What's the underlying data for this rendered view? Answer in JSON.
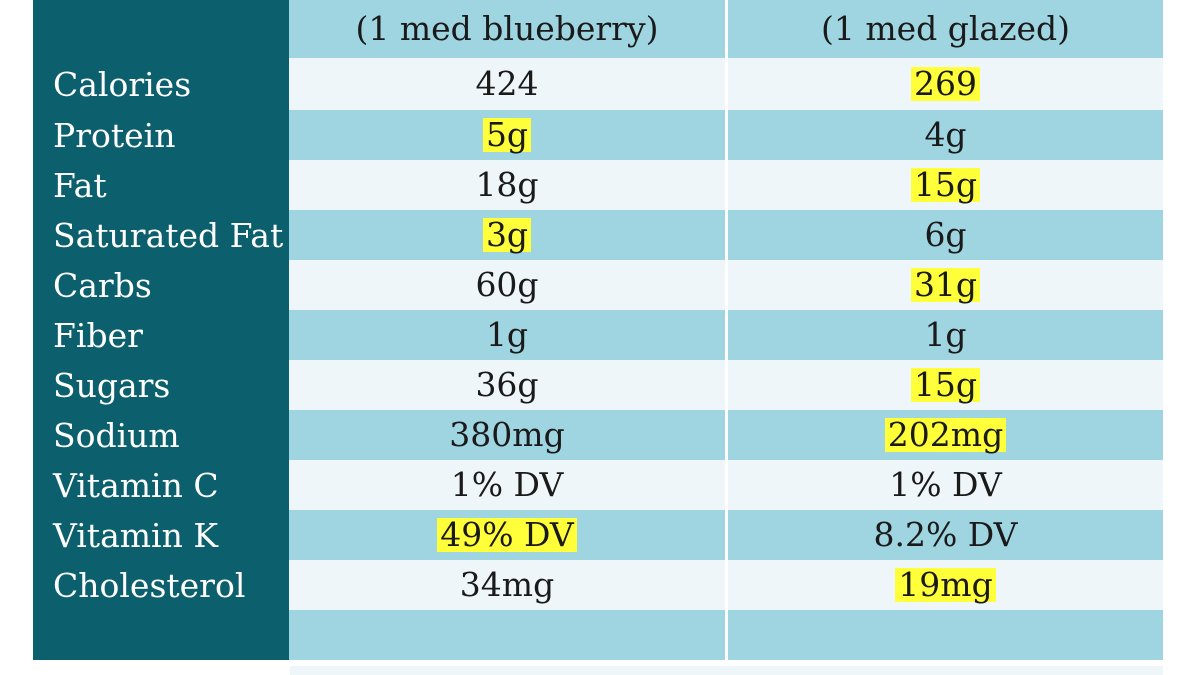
{
  "header": {
    "col1_subtitle": "(1 med blueberry)",
    "col2_subtitle": "(1 med glazed)"
  },
  "rows": [
    {
      "label": "Calories",
      "col1": "424",
      "col2": "269",
      "highlight": "col2"
    },
    {
      "label": "Protein",
      "col1": "5g",
      "col2": "4g",
      "highlight": "col1"
    },
    {
      "label": "Fat",
      "col1": "18g",
      "col2": "15g",
      "highlight": "col2"
    },
    {
      "label": "Saturated Fat",
      "col1": "3g",
      "col2": "6g",
      "highlight": "col1"
    },
    {
      "label": "Carbs",
      "col1": "60g",
      "col2": "31g",
      "highlight": "col2"
    },
    {
      "label": "Fiber",
      "col1": "1g",
      "col2": "1g",
      "highlight": "none"
    },
    {
      "label": "Sugars",
      "col1": "36g",
      "col2": "15g",
      "highlight": "col2"
    },
    {
      "label": "Sodium",
      "col1": "380mg",
      "col2": "202mg",
      "highlight": "col2"
    },
    {
      "label": "Vitamin C",
      "col1": "1% DV",
      "col2": "1% DV",
      "highlight": "none"
    },
    {
      "label": "Vitamin K",
      "col1": "49% DV",
      "col2": "8.2% DV",
      "highlight": "col1"
    },
    {
      "label": "Cholesterol",
      "col1": "34mg",
      "col2": "19mg",
      "highlight": "col2"
    }
  ],
  "colors": {
    "label_column": "#0c5f6c",
    "row_light": "#eef6f9",
    "row_dark": "#9fd4e1",
    "highlight": "#ffff3a"
  }
}
